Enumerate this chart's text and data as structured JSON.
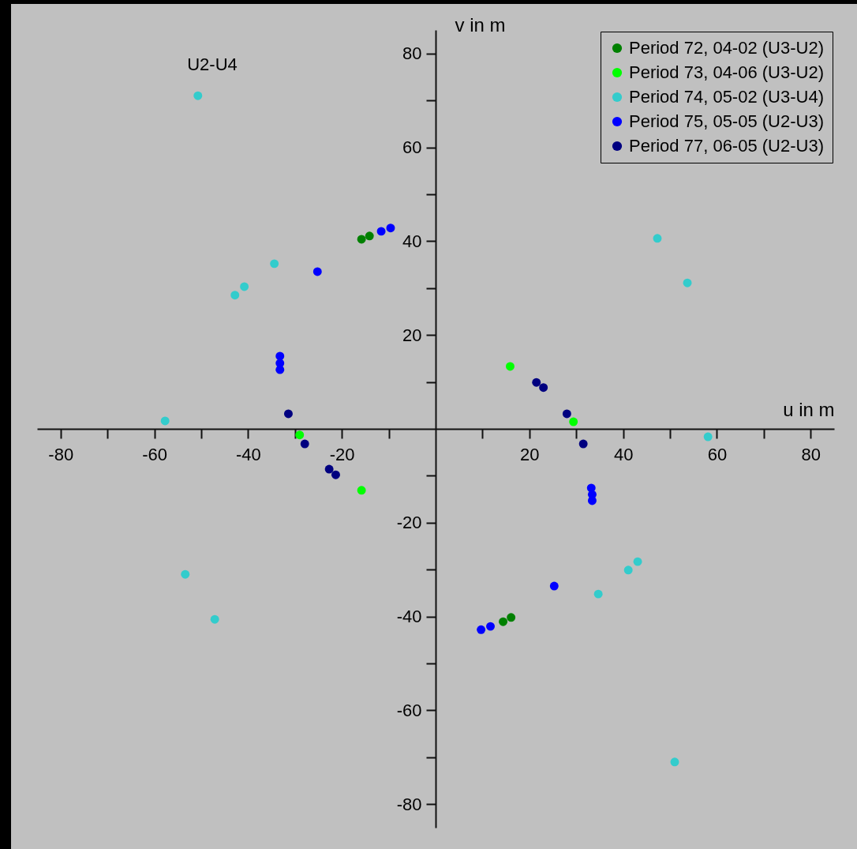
{
  "chart_data": {
    "type": "scatter",
    "xlabel": "u in m",
    "ylabel": "v in m",
    "annotations": [
      "U2-U4"
    ],
    "xlim": [
      -85,
      85
    ],
    "ylim": [
      -85,
      85
    ],
    "xticks": [
      -80,
      {
        "value": -70,
        "label": null
      },
      -60,
      {
        "value": -50,
        "label": null
      },
      -40,
      {
        "value": -30,
        "label": null
      },
      -20,
      {
        "value": -10,
        "label": null
      },
      {
        "value": 10,
        "label": null
      },
      20,
      {
        "value": 30,
        "label": null
      },
      40,
      {
        "value": 50,
        "label": null
      },
      60,
      {
        "value": 70,
        "label": null
      },
      80
    ],
    "yticks": [
      -80,
      {
        "value": -70,
        "label": null
      },
      -60,
      {
        "value": -50,
        "label": null
      },
      -40,
      {
        "value": -30,
        "label": null
      },
      -20,
      {
        "value": -10,
        "label": null
      },
      {
        "value": 10,
        "label": null
      },
      20,
      {
        "value": 30,
        "label": null
      },
      40,
      {
        "value": 50,
        "label": null
      },
      60,
      {
        "value": 70,
        "label": null
      },
      80
    ],
    "grid": false,
    "legend": "top right",
    "marker": "circle",
    "series": [
      {
        "name": "Period 72, 04-02 (U3-U2)",
        "color": "#008000",
        "x": [
          -15.8,
          -14.1,
          14.4,
          16.1
        ],
        "values": [
          40.4,
          41.1,
          -41.1,
          -40.2
        ]
      },
      {
        "name": "Period 73, 04-06 (U3-U2)",
        "color": "#00ff00",
        "x": [
          15.9,
          29.4,
          -29.0,
          -15.8
        ],
        "values": [
          13.3,
          1.5,
          -1.3,
          -13.1
        ]
      },
      {
        "name": "Period 74, 05-02 (U3-U4)",
        "color": "#33cccc",
        "x": [
          -50.7,
          -34.4,
          -40.8,
          -42.8,
          -57.7,
          -53.4,
          -47.1,
          47.3,
          53.7,
          58.1,
          43.1,
          41.1,
          34.7,
          51.0
        ],
        "values": [
          71.0,
          35.2,
          30.3,
          28.5,
          1.7,
          -31.0,
          -40.6,
          40.6,
          31.1,
          -1.7,
          -28.3,
          -30.1,
          -35.2,
          -71.0
        ]
      },
      {
        "name": "Period 75, 05-05 (U2-U3)",
        "color": "#0000ff",
        "x": [
          -9.6,
          -11.6,
          -25.2,
          -33.2,
          -33.2,
          -33.2,
          33.2,
          33.4,
          33.4,
          25.3,
          11.7,
          9.7
        ],
        "values": [
          42.8,
          42.1,
          33.5,
          15.5,
          14.0,
          12.6,
          -12.6,
          -14.0,
          -15.3,
          -33.5,
          -42.1,
          -42.8
        ]
      },
      {
        "name": "Period 77, 06-05 (U2-U3)",
        "color": "#000080",
        "x": [
          21.5,
          23.0,
          28.0,
          31.5,
          -31.4,
          -27.9,
          -22.7,
          -21.3
        ],
        "values": [
          9.9,
          8.8,
          3.2,
          -3.2,
          3.2,
          -3.2,
          -8.6,
          -9.8
        ]
      }
    ]
  }
}
